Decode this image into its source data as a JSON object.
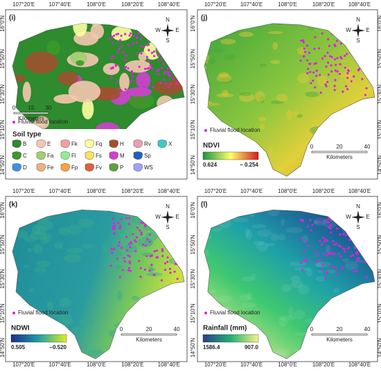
{
  "lon_labels": [
    "107°20'E",
    "107°40'E",
    "108°0'E",
    "108°20'E",
    "108°40'E"
  ],
  "lat_labels": [
    "16°0'N",
    "15°50'N",
    "15°30'N",
    "15°10'N",
    "14°50'N"
  ],
  "compass": {
    "n": "N",
    "s": "S",
    "e": "E",
    "w": "W"
  },
  "panels": [
    {
      "label": "(i)",
      "flood_legend": "Fluvial flood location",
      "scale_labels": [
        "0",
        "15",
        "30"
      ],
      "scale_unit": "Kilometers",
      "legend_title": "Soil type",
      "soil_classes": [
        "B",
        "E",
        "Fk",
        "Fq",
        "H",
        "Rv",
        "X",
        "C",
        "Fa",
        "Fl",
        "Fs",
        "M",
        "Sp",
        "D",
        "Fe",
        "Fp",
        "Fv",
        "P",
        "WS"
      ]
    },
    {
      "label": "(j)",
      "flood_legend": "Fluvial flood location",
      "legend_title": "NDVI",
      "range_labels": [
        "0.624",
        "− 0.254"
      ],
      "scale_labels": [
        "0",
        "20",
        "40"
      ],
      "scale_unit": "Kilometers"
    },
    {
      "label": "(k)",
      "flood_legend": "Fluvial flood location",
      "legend_title": "NDWI",
      "range_labels": [
        "0.505",
        "−0.520"
      ],
      "scale_labels": [
        "0",
        "20",
        "40"
      ],
      "scale_unit": "Kilometers"
    },
    {
      "label": "(l)",
      "flood_legend": "Fluvial flood location",
      "legend_title": "Rainfall (mm)",
      "range_labels": [
        "1586.4",
        "907.0"
      ],
      "scale_labels": [
        "0",
        "20",
        "40"
      ],
      "scale_unit": "Kilometers"
    }
  ]
}
